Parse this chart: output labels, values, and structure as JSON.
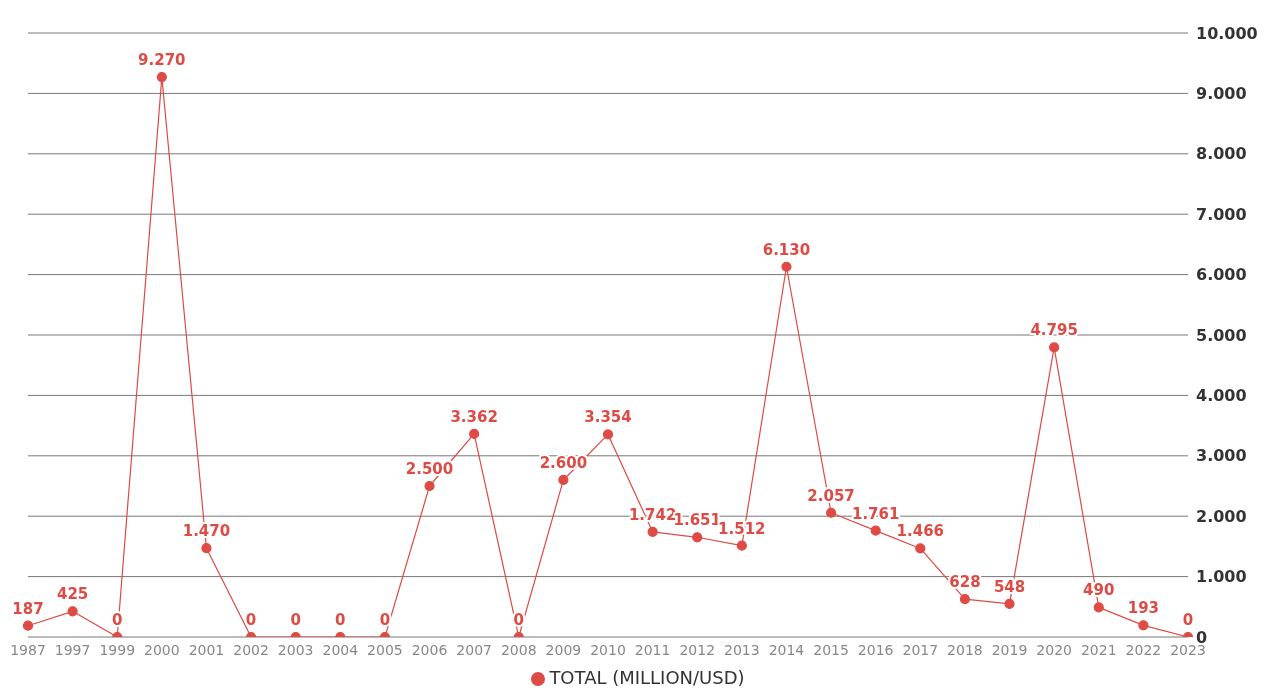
{
  "chart_data": {
    "type": "line",
    "categories": [
      "1987",
      "1997",
      "1999",
      "2000",
      "2001",
      "2002",
      "2003",
      "2004",
      "2005",
      "2006",
      "2007",
      "2008",
      "2009",
      "2010",
      "2011",
      "2012",
      "2013",
      "2014",
      "2015",
      "2016",
      "2017",
      "2018",
      "2019",
      "2020",
      "2021",
      "2022",
      "2023"
    ],
    "series": [
      {
        "name": "TOTAL (MILLION/USD)",
        "color": "#dd4b44",
        "values": [
          187,
          425,
          0,
          9270,
          1470,
          0,
          0,
          0,
          0,
          2500,
          3362,
          0,
          2600,
          3354,
          1742,
          1651,
          1512,
          6130,
          2057,
          1761,
          1466,
          628,
          548,
          4795,
          490,
          193,
          0
        ],
        "value_labels": [
          "187",
          "425",
          "0",
          "9.270",
          "1.470",
          "0",
          "0",
          "0",
          "0",
          "2.500",
          "3.362",
          "0",
          "2.600",
          "3.354",
          "1.742",
          "1.651",
          "1.512",
          "6.130",
          "2.057",
          "1.761",
          "1.466",
          "628",
          "548",
          "4.795",
          "490",
          "193",
          "0"
        ]
      }
    ],
    "ylim": [
      0,
      10000
    ],
    "yticks": [
      {
        "value": 0,
        "label": "0"
      },
      {
        "value": 1000,
        "label": "1.000"
      },
      {
        "value": 2000,
        "label": "2.000"
      },
      {
        "value": 3000,
        "label": "3.000"
      },
      {
        "value": 4000,
        "label": "4.000"
      },
      {
        "value": 5000,
        "label": "5.000"
      },
      {
        "value": 6000,
        "label": "6.000"
      },
      {
        "value": 7000,
        "label": "7.000"
      },
      {
        "value": 8000,
        "label": "8.000"
      },
      {
        "value": 9000,
        "label": "9.000"
      },
      {
        "value": 10000,
        "label": "10.000"
      }
    ],
    "grid": "y",
    "legend": "bottom",
    "marker": "circle",
    "line_style": "solid"
  }
}
